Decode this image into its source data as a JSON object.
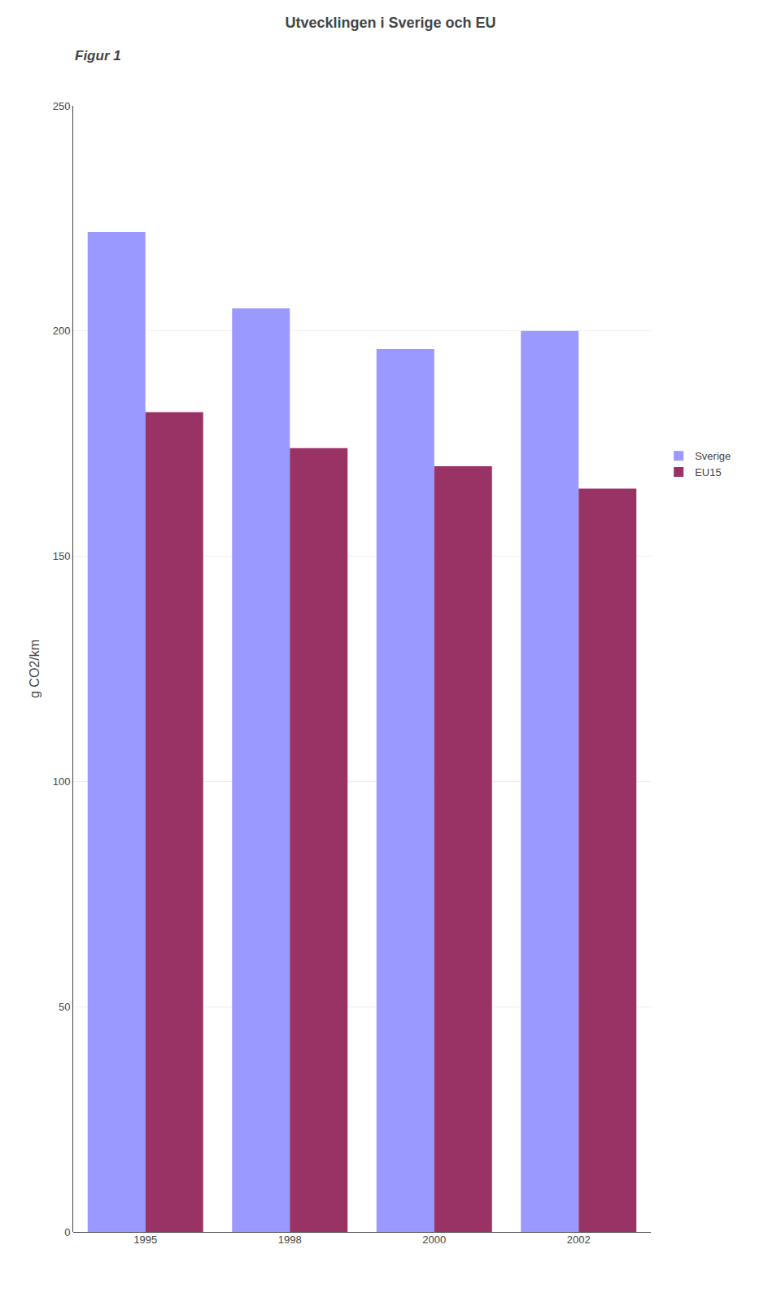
{
  "chart_data": {
    "type": "bar",
    "title": "Utvecklingen i Sverige och EU",
    "annotations": [
      "Figur 1"
    ],
    "categories": [
      "1995",
      "1998",
      "2000",
      "2002"
    ],
    "series": [
      {
        "name": "Sverige",
        "color": "#9999FF",
        "values": [
          222,
          205,
          196,
          200
        ]
      },
      {
        "name": "EU15",
        "color": "#993366",
        "values": [
          182,
          174,
          170,
          165
        ]
      }
    ],
    "ylabel": "g CO2/km",
    "ylim": [
      0,
      250
    ],
    "yticks": [
      0,
      50,
      100,
      150,
      200,
      250
    ],
    "grid": true,
    "legend": "right"
  }
}
